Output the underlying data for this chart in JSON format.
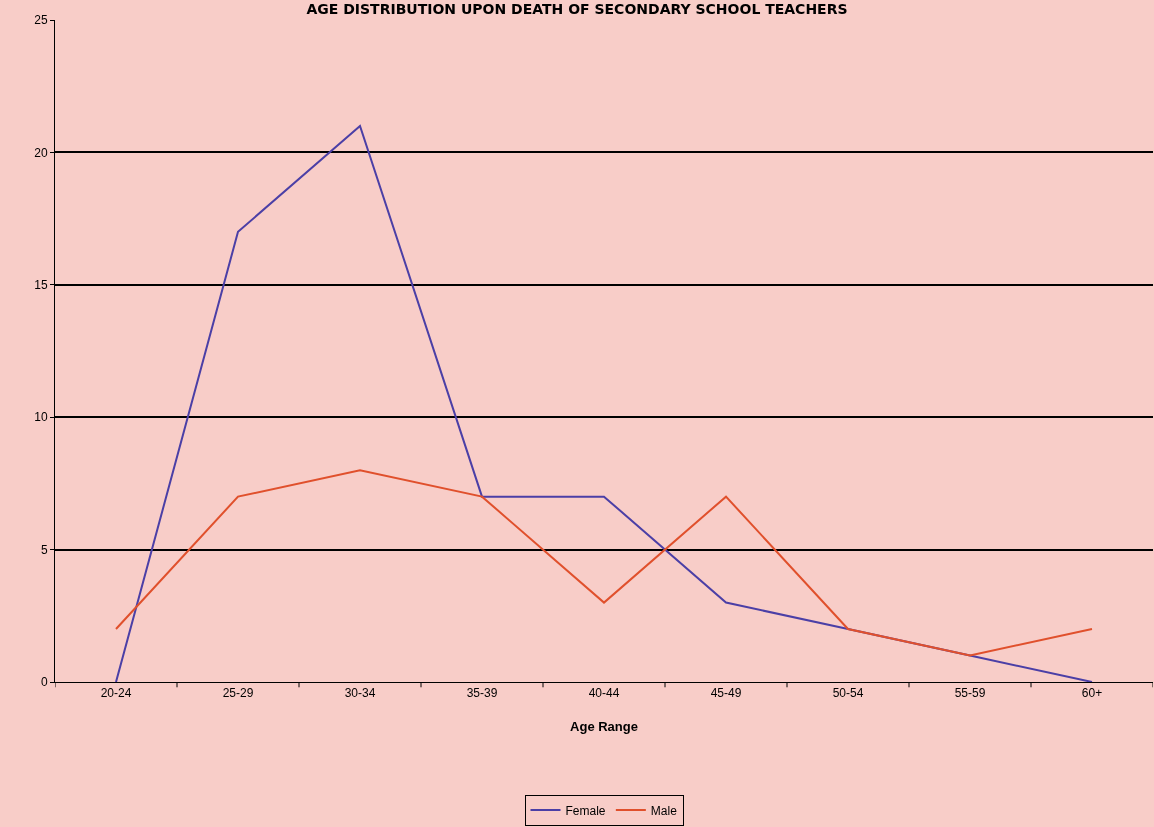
{
  "chart_data": {
    "type": "line",
    "title": "AGE DISTRIBUTION UPON DEATH OF SECONDARY SCHOOL TEACHERS",
    "xlabel": "Age Range",
    "categories": [
      "20-24",
      "25-29",
      "30-34",
      "35-39",
      "40-44",
      "45-49",
      "50-54",
      "55-59",
      "60+"
    ],
    "series": [
      {
        "name": "Female",
        "color": "#4b3fa6",
        "values": [
          0,
          17,
          21,
          7,
          7,
          3,
          2,
          1,
          0
        ]
      },
      {
        "name": "Male",
        "color": "#e0502c",
        "values": [
          2,
          7,
          8,
          7,
          3,
          7,
          2,
          1,
          2
        ]
      }
    ],
    "ylim": [
      0,
      25
    ],
    "yticks": [
      0,
      5,
      10,
      15,
      20,
      25
    ],
    "grid": "y",
    "legend": "bottom",
    "marker": "none",
    "line_style": "solid"
  }
}
